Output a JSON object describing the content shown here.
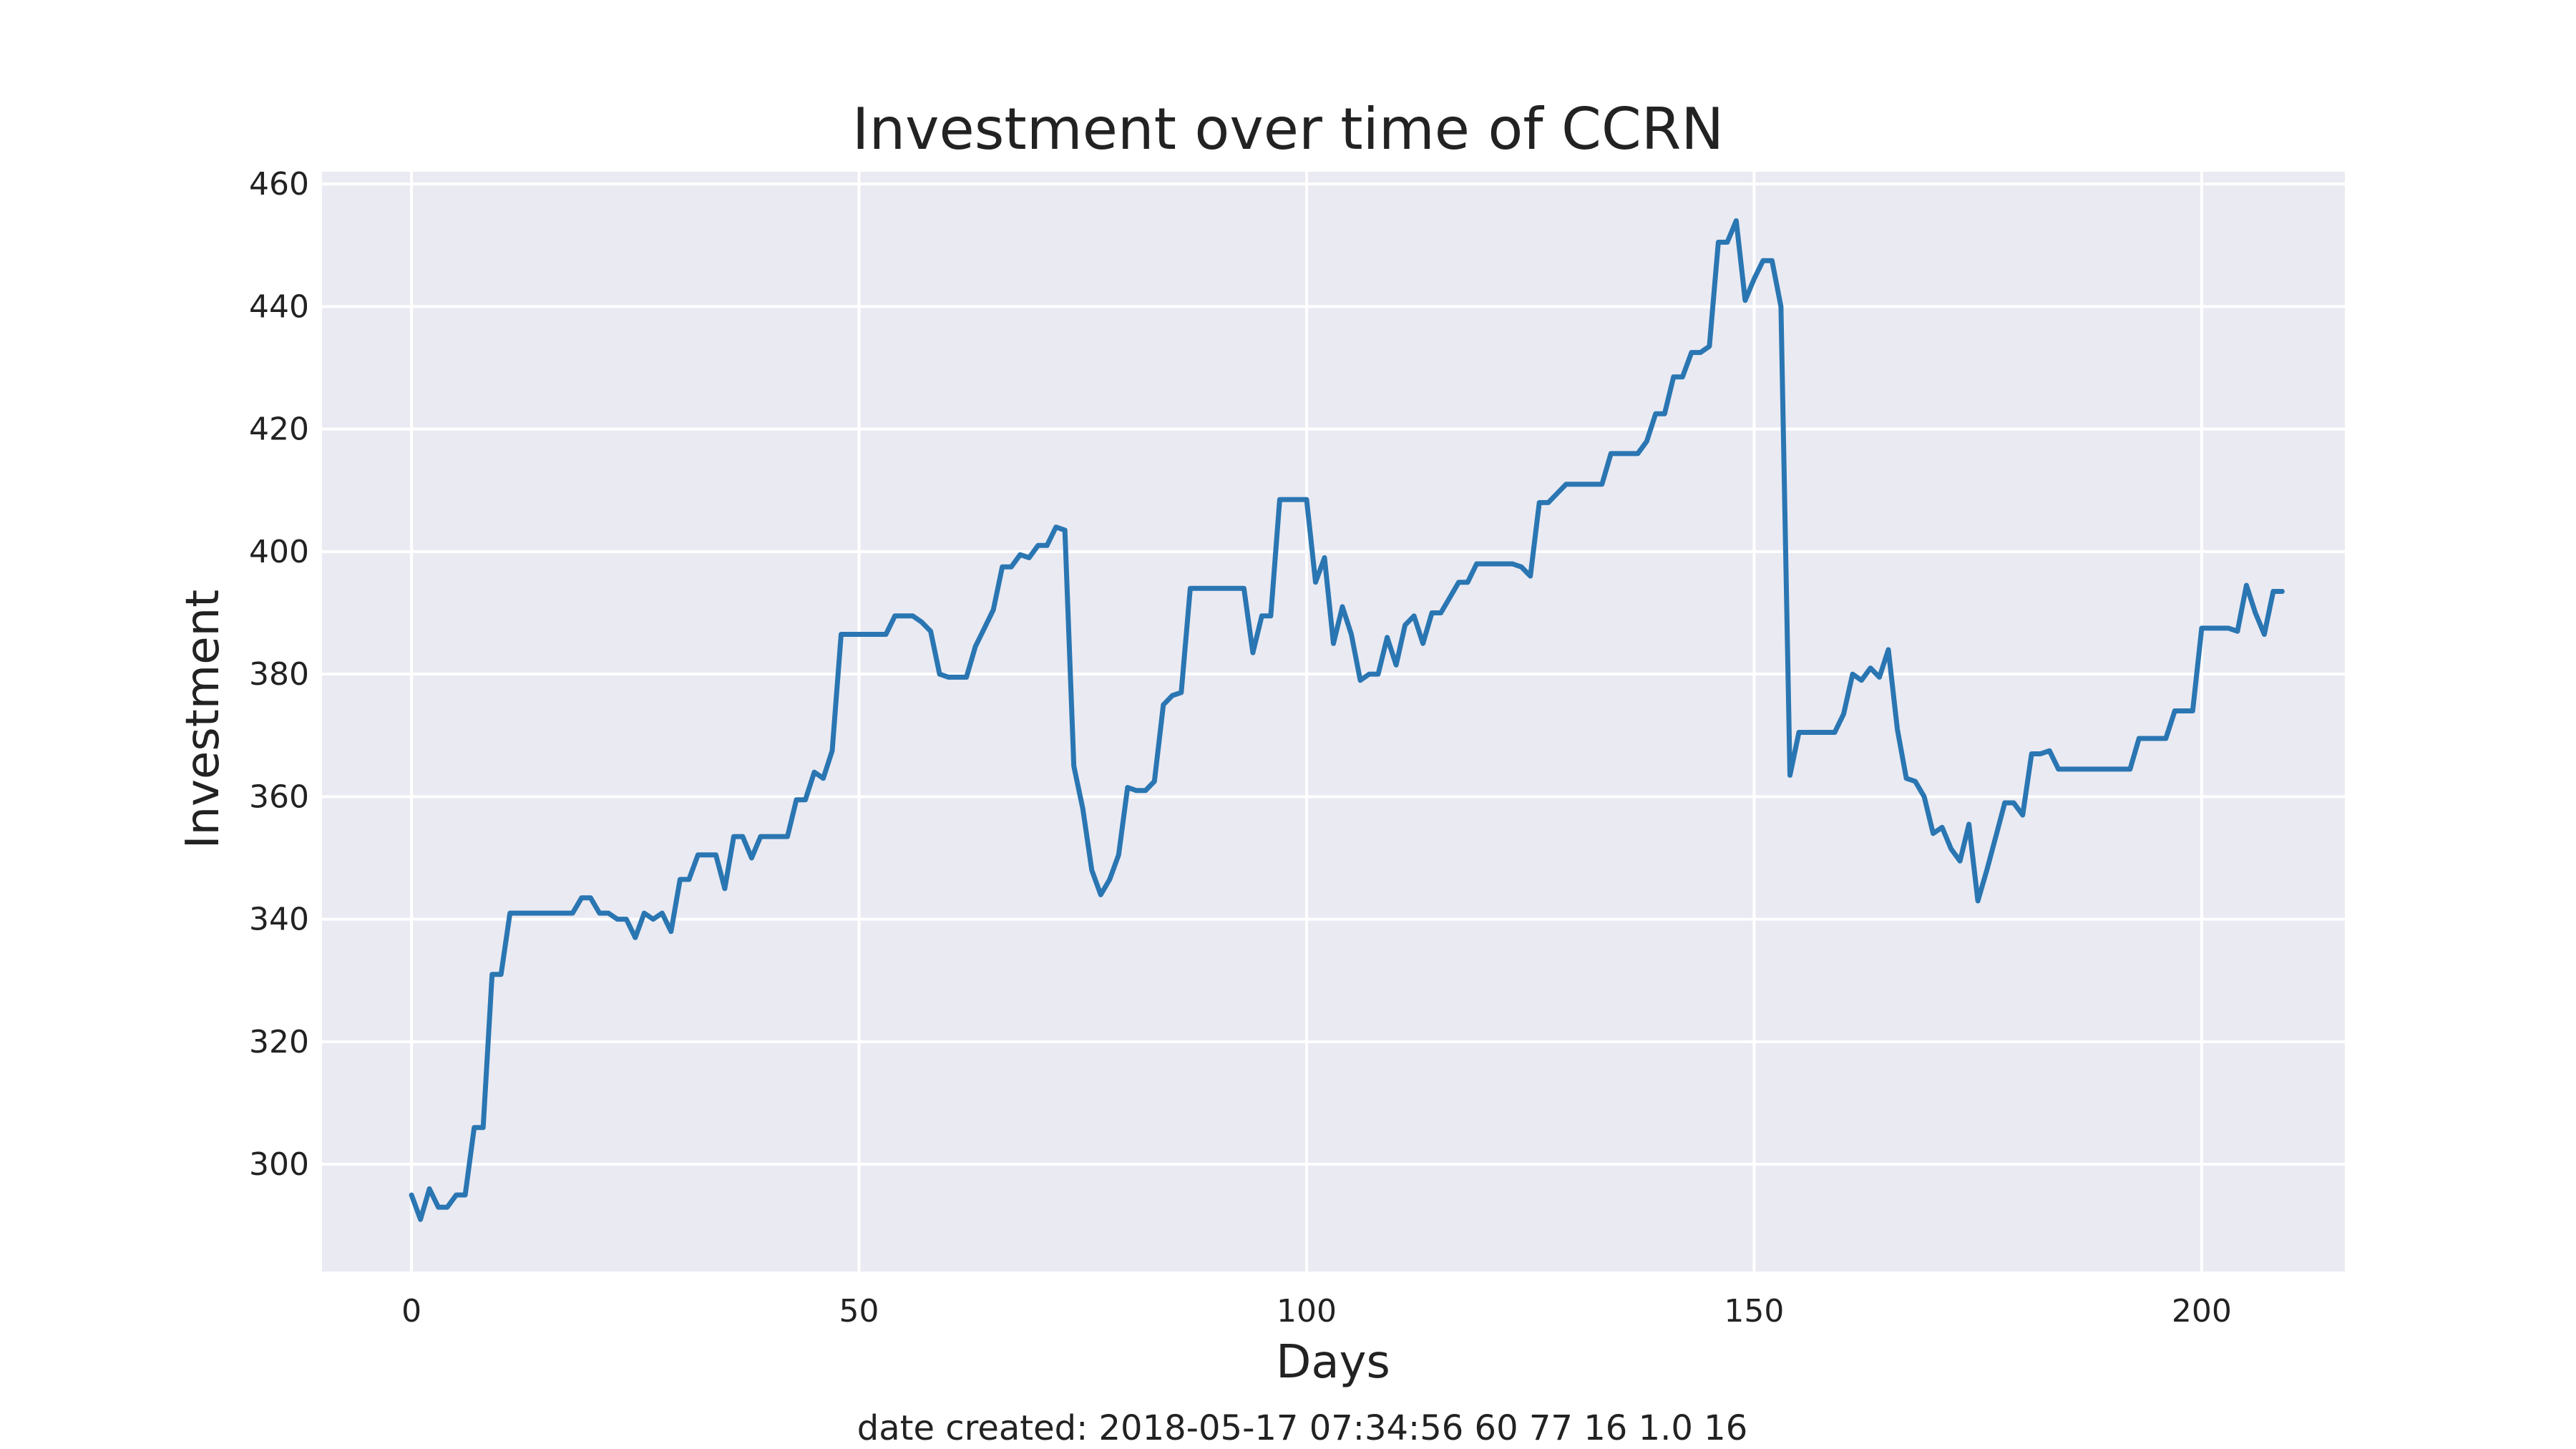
{
  "chart_data": {
    "type": "line",
    "title": "Investment over time of CCRN",
    "xlabel": "Days",
    "ylabel": "Investment",
    "footer": "date created: 2018-05-17 07:34:56 60 77 16 1.0 16",
    "xlim": [
      -10,
      216
    ],
    "ylim": [
      282.5,
      462
    ],
    "xticks": [
      0,
      50,
      100,
      150,
      200
    ],
    "yticks": [
      300,
      320,
      340,
      360,
      380,
      400,
      420,
      440,
      460
    ],
    "grid": true,
    "colors": {
      "plot_bg": "#eaeaf2",
      "grid": "#ffffff",
      "line": "#2a76b2"
    },
    "series": [
      {
        "values": [
          295,
          291,
          296,
          293,
          293,
          295,
          295,
          306,
          306,
          331,
          331,
          341,
          341,
          341,
          341,
          341,
          341,
          341,
          341,
          343.5,
          343.5,
          341,
          341,
          340,
          340,
          337,
          341,
          340,
          341,
          338,
          346.5,
          346.5,
          350.5,
          350.5,
          350.5,
          345,
          353.5,
          353.5,
          350,
          353.5,
          353.5,
          353.5,
          353.5,
          359.5,
          359.5,
          364,
          363,
          367.5,
          386.5,
          386.5,
          386.5,
          386.5,
          386.5,
          386.5,
          389.5,
          389.5,
          389.5,
          388.5,
          387,
          380,
          379.5,
          379.5,
          379.5,
          384.5,
          387.5,
          390.5,
          397.5,
          397.5,
          399.5,
          399,
          401,
          401,
          404,
          403.5,
          365,
          358,
          348,
          344,
          346.5,
          350.5,
          361.5,
          361,
          361,
          362.5,
          375,
          376.5,
          377,
          394,
          394,
          394,
          394,
          394,
          394,
          394,
          383.5,
          389.5,
          389.5,
          408.5,
          408.5,
          408.5,
          408.5,
          395,
          399,
          385,
          391,
          386.5,
          379,
          380,
          380,
          386,
          381.5,
          388,
          389.5,
          385,
          390,
          390,
          392.5,
          395,
          395,
          398,
          398,
          398,
          398,
          398,
          397.5,
          396,
          408,
          408,
          409.5,
          411,
          411,
          411,
          411,
          411,
          416,
          416,
          416,
          416,
          418,
          422.5,
          422.5,
          428.5,
          428.5,
          432.5,
          432.5,
          433.5,
          450.5,
          450.5,
          454,
          441,
          444.5,
          447.5,
          447.5,
          440,
          363.5,
          370.5,
          370.5,
          370.5,
          370.5,
          370.5,
          373.5,
          380,
          379,
          381,
          379.5,
          384,
          371,
          363,
          362.5,
          360,
          354,
          355,
          351.5,
          349.5,
          355.5,
          343,
          348,
          353.5,
          359,
          359,
          357,
          367,
          367,
          367.5,
          364.5,
          364.5,
          364.5,
          364.5,
          364.5,
          364.5,
          364.5,
          364.5,
          364.5,
          369.5,
          369.5,
          369.5,
          369.5,
          374,
          374,
          374,
          387.5,
          387.5,
          387.5,
          387.5,
          387,
          394.5,
          390,
          386.5,
          393.5,
          393.5
        ]
      }
    ]
  }
}
